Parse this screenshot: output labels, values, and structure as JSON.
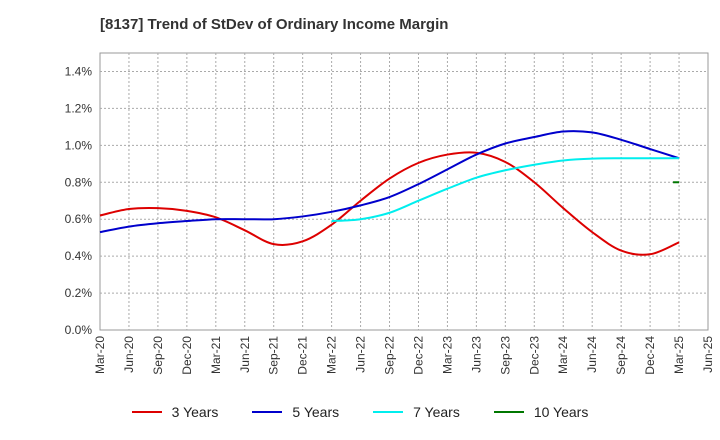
{
  "title": "[8137]  Trend of StDev of Ordinary Income Margin",
  "chart_data": {
    "type": "line",
    "title": "[8137]  Trend of StDev of Ordinary Income Margin",
    "xlabel": "",
    "ylabel": "",
    "ylim": [
      0,
      1.5
    ],
    "grid": true,
    "legend_position": "bottom",
    "x_ticks": [
      "Mar-20",
      "Jun-20",
      "Sep-20",
      "Dec-20",
      "Mar-21",
      "Jun-21",
      "Sep-21",
      "Dec-21",
      "Mar-22",
      "Jun-22",
      "Sep-22",
      "Dec-22",
      "Mar-23",
      "Jun-23",
      "Sep-23",
      "Dec-23",
      "Mar-24",
      "Jun-24",
      "Sep-24",
      "Dec-24",
      "Mar-25",
      "Jun-25"
    ],
    "y_ticks": [
      "0.0%",
      "0.2%",
      "0.4%",
      "0.6%",
      "0.8%",
      "1.0%",
      "1.2%",
      "1.4%"
    ],
    "y_tick_values": [
      0,
      0.2,
      0.4,
      0.6,
      0.8,
      1.0,
      1.2,
      1.4
    ],
    "x": [
      "Mar-20",
      "Jun-20",
      "Sep-20",
      "Dec-20",
      "Mar-21",
      "Jun-21",
      "Sep-21",
      "Dec-21",
      "Mar-22",
      "Jun-22",
      "Sep-22",
      "Dec-22",
      "Mar-23",
      "Jun-23",
      "Sep-23",
      "Dec-23",
      "Mar-24",
      "Jun-24",
      "Sep-24",
      "Dec-24",
      "Mar-25"
    ],
    "series": [
      {
        "name": "3 Years",
        "color": "#dd0000",
        "values": [
          0.62,
          0.655,
          0.66,
          0.645,
          0.61,
          0.54,
          0.465,
          0.48,
          0.57,
          0.7,
          0.82,
          0.905,
          0.95,
          0.96,
          0.91,
          0.8,
          0.66,
          0.53,
          0.43,
          0.41,
          0.475
        ]
      },
      {
        "name": "5 Years",
        "color": "#0000cc",
        "values": [
          0.53,
          0.56,
          0.578,
          0.59,
          0.6,
          0.6,
          0.6,
          0.615,
          0.64,
          0.675,
          0.72,
          0.79,
          0.87,
          0.95,
          1.01,
          1.045,
          1.075,
          1.07,
          1.03,
          0.98,
          0.93
        ]
      },
      {
        "name": "7 Years",
        "color": "#00eeee",
        "values": [
          null,
          null,
          null,
          null,
          null,
          null,
          null,
          null,
          0.59,
          0.6,
          0.635,
          0.7,
          0.765,
          0.825,
          0.865,
          0.895,
          0.918,
          0.928,
          0.93,
          0.93,
          0.93
        ]
      },
      {
        "name": "10 Years",
        "color": "#007700",
        "values": [
          null,
          null,
          null,
          null,
          null,
          null,
          null,
          null,
          null,
          null,
          null,
          null,
          null,
          null,
          null,
          null,
          null,
          null,
          null,
          null,
          0.8
        ]
      }
    ]
  }
}
